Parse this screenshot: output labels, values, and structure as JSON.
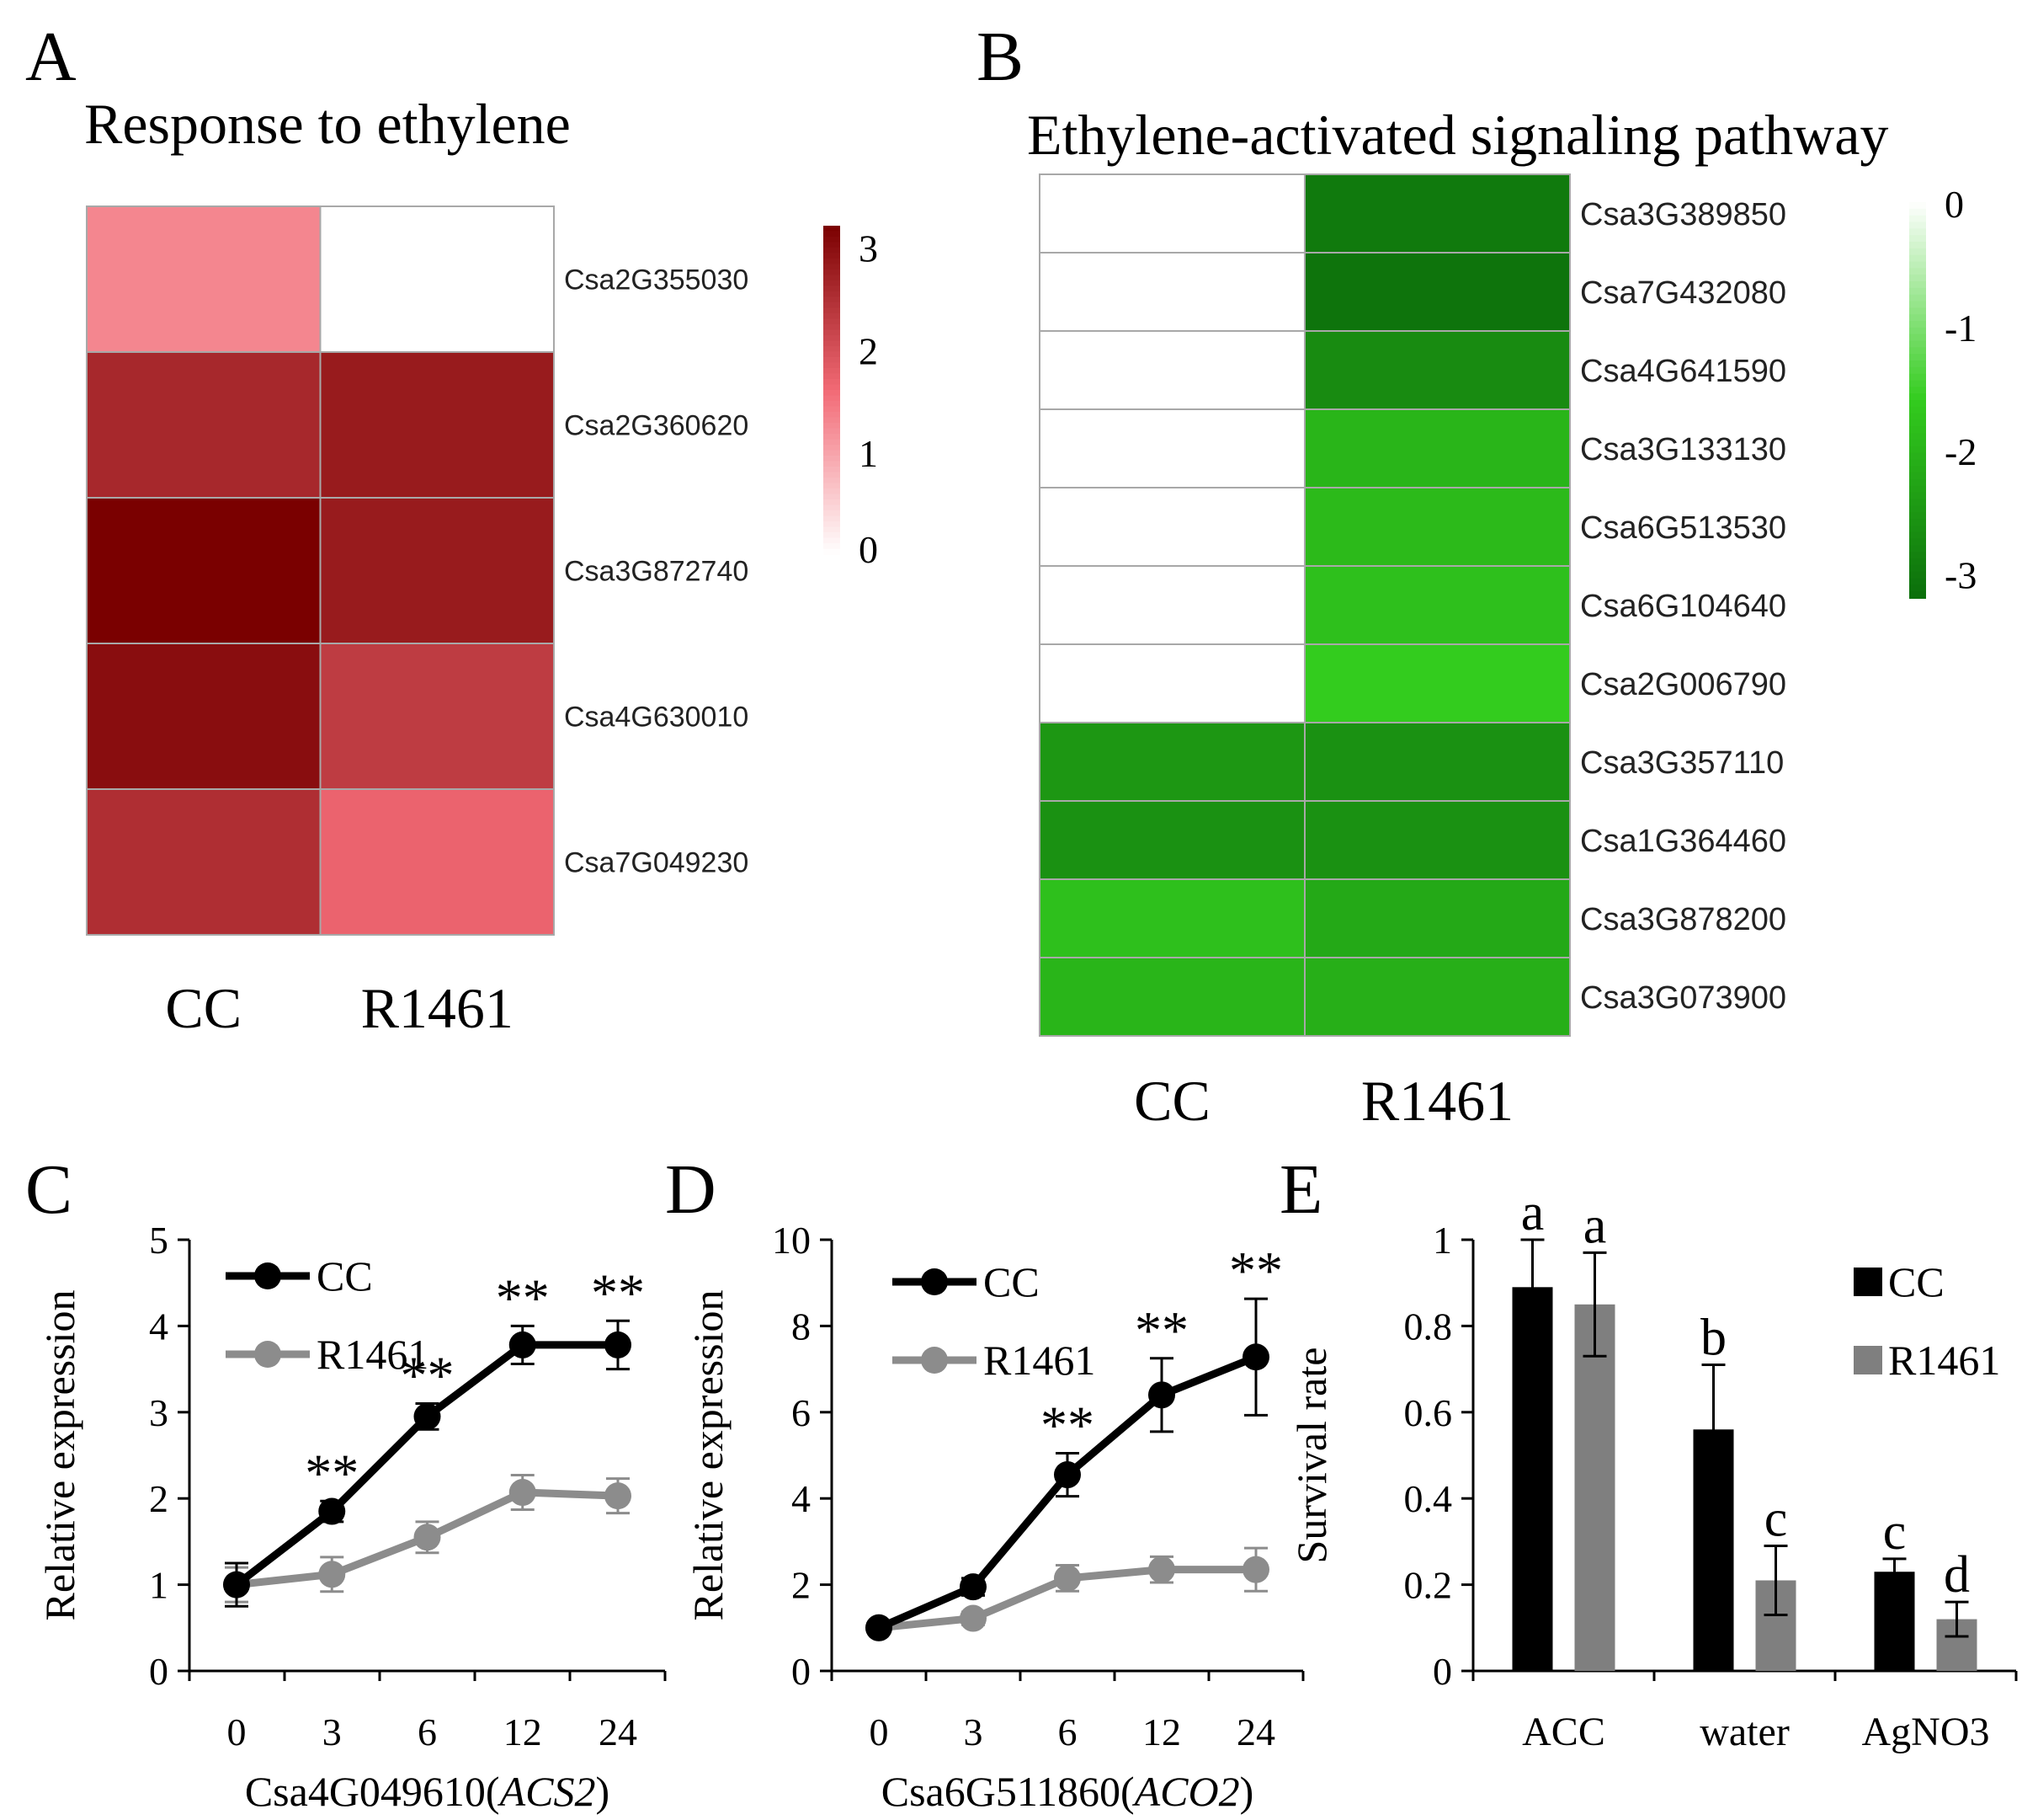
{
  "chart_data": [
    {
      "panel": "A",
      "type": "heatmap",
      "title": "Response to ethylene",
      "columns": [
        "CC",
        "R1461"
      ],
      "rows": [
        "Csa2G355030",
        "Csa2G360620",
        "Csa3G872740",
        "Csa4G630010",
        "Csa7G049230"
      ],
      "values": [
        [
          1.3,
          0.0
        ],
        [
          2.6,
          2.8
        ],
        [
          3.2,
          2.8
        ],
        [
          3.0,
          2.3
        ],
        [
          2.5,
          1.7
        ]
      ],
      "colorbar": {
        "min": 0,
        "max": 3.2,
        "ticks": [
          "3",
          "2",
          "1",
          "0"
        ],
        "low_color": "#ffffff",
        "mid_color": "#f26a75",
        "high_color": "#7a0000"
      }
    },
    {
      "panel": "B",
      "type": "heatmap",
      "title": "Ethylene-activated signaling pathway",
      "columns": [
        "CC",
        "R1461"
      ],
      "rows": [
        "Csa3G389850",
        "Csa7G432080",
        "Csa4G641590",
        "Csa3G133130",
        "Csa6G513530",
        "Csa6G104640",
        "Csa2G006790",
        "Csa3G357110",
        "Csa1G364460",
        "Csa3G878200",
        "Csa3G073900"
      ],
      "values": [
        [
          0,
          -3.0
        ],
        [
          0,
          -3.1
        ],
        [
          0,
          -2.7
        ],
        [
          0,
          -2.0
        ],
        [
          0,
          -1.9
        ],
        [
          0,
          -1.8
        ],
        [
          0,
          -1.6
        ],
        [
          -2.5,
          -2.6
        ],
        [
          -2.6,
          -2.6
        ],
        [
          -1.8,
          -2.2
        ],
        [
          -2.0,
          -2.1
        ]
      ],
      "colorbar": {
        "min": -3.2,
        "max": 0,
        "ticks": [
          "0",
          "-1",
          "-2",
          "-3"
        ],
        "low_color": "#0b6e0b",
        "mid_color": "#33cc1e",
        "high_color": "#ffffff"
      }
    },
    {
      "panel": "C",
      "type": "line",
      "categories": [
        "0",
        "3",
        "6",
        "12",
        "24"
      ],
      "xlabel": "Csa4G049610(",
      "xlabel_italic": "ACS2",
      "xlabel_close": ")",
      "ylabel": "Relative expression",
      "ylim": [
        0,
        5
      ],
      "yticks": [
        "0",
        "1",
        "2",
        "3",
        "4",
        "5"
      ],
      "series": [
        {
          "name": "CC",
          "values": [
            1.0,
            1.85,
            2.95,
            3.78,
            3.78
          ],
          "errors": [
            0.25,
            0.12,
            0.15,
            0.22,
            0.28
          ],
          "color": "#000000"
        },
        {
          "name": "R1461",
          "values": [
            1.0,
            1.12,
            1.55,
            2.07,
            2.03
          ],
          "errors": [
            0.2,
            0.2,
            0.18,
            0.2,
            0.2
          ],
          "color": "#8c8c8c"
        }
      ],
      "annotations": [
        {
          "x": "3",
          "text": "**"
        },
        {
          "x": "6",
          "text": "**"
        },
        {
          "x": "12",
          "text": "**"
        },
        {
          "x": "24",
          "text": "**"
        }
      ]
    },
    {
      "panel": "D",
      "type": "line",
      "categories": [
        "0",
        "3",
        "6",
        "12",
        "24"
      ],
      "xlabel": "Csa6G511860(",
      "xlabel_italic": "ACO2",
      "xlabel_close": ")",
      "ylabel": "Relative expression",
      "ylim": [
        0,
        10
      ],
      "yticks": [
        "0",
        "2",
        "4",
        "6",
        "8",
        "10"
      ],
      "series": [
        {
          "name": "CC",
          "values": [
            1.0,
            1.95,
            4.55,
            6.4,
            7.28
          ],
          "errors": [
            0.12,
            0.2,
            0.5,
            0.85,
            1.35
          ],
          "color": "#000000"
        },
        {
          "name": "R1461",
          "values": [
            1.0,
            1.22,
            2.15,
            2.35,
            2.35
          ],
          "errors": [
            0.12,
            0.15,
            0.3,
            0.3,
            0.5
          ],
          "color": "#8c8c8c"
        }
      ],
      "annotations": [
        {
          "x": "6",
          "text": "**"
        },
        {
          "x": "12",
          "text": "**"
        },
        {
          "x": "24",
          "text": "**"
        }
      ]
    },
    {
      "panel": "E",
      "type": "bar",
      "categories": [
        "ACC",
        "water",
        "AgNO3"
      ],
      "ylabel": "Survival rate",
      "ylim": [
        0,
        1
      ],
      "yticks": [
        "0",
        "0.2",
        "0.4",
        "0.6",
        "0.8",
        "1"
      ],
      "series": [
        {
          "name": "CC",
          "values": [
            0.89,
            0.56,
            0.23
          ],
          "errors": [
            0.11,
            0.15,
            0.03
          ],
          "letters": [
            "a",
            "b",
            "c"
          ],
          "color": "#000000"
        },
        {
          "name": "R1461",
          "values": [
            0.85,
            0.21,
            0.12
          ],
          "errors": [
            0.12,
            0.08,
            0.04
          ],
          "letters": [
            "a",
            "c",
            "d"
          ],
          "color": "#7f7f7f"
        }
      ]
    }
  ]
}
